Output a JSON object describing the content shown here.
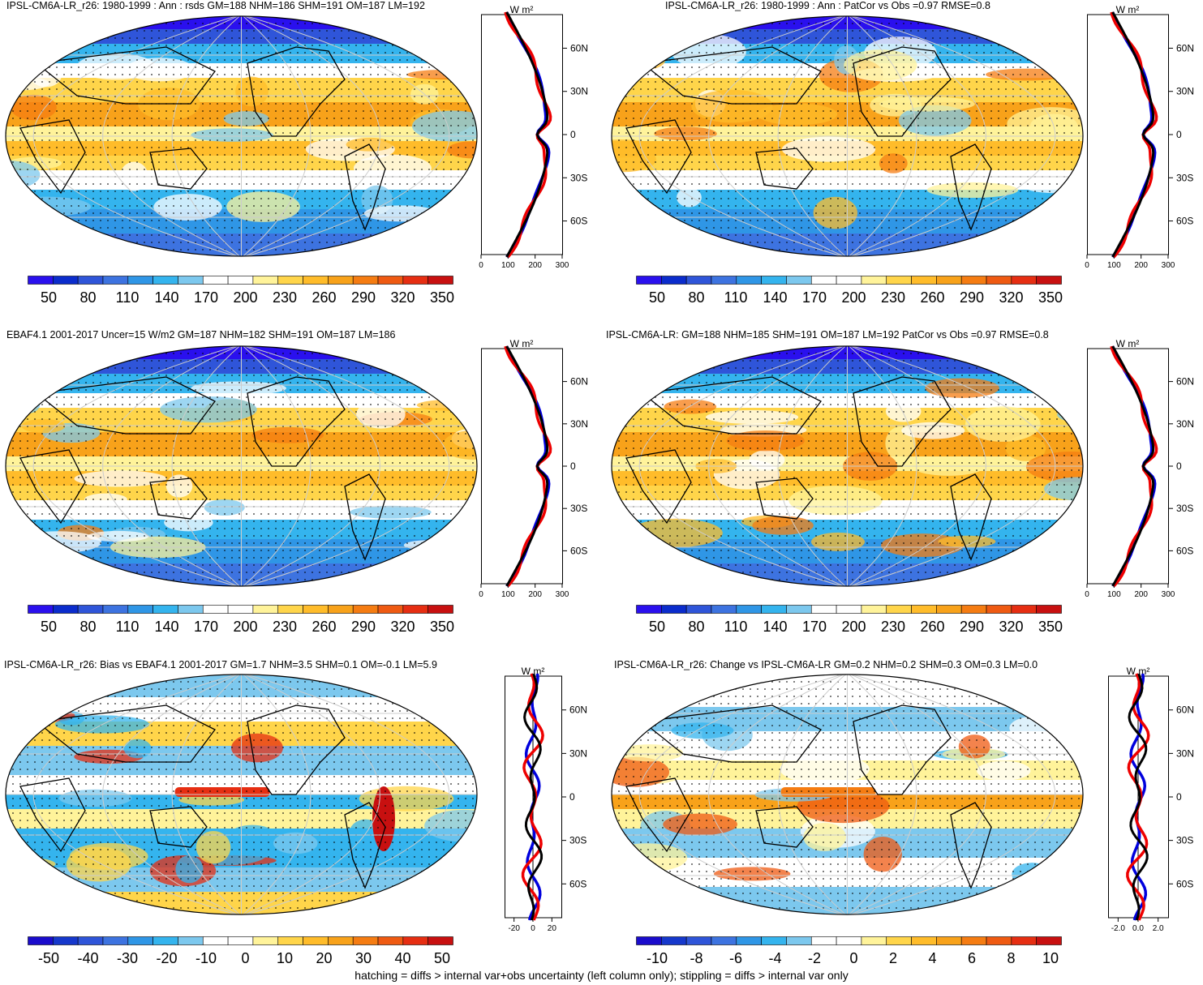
{
  "footer": "hatching = diffs > internal var+obs uncertainty (left column only); stippling = diffs > internal var only",
  "chart_data": [
    {
      "type": "heatmap",
      "title": "IPSL-CM6A-LR_r26: 1980-1999 : Ann : rsds GM=188 NHM=186 SHM=191 OM=187 LM=192",
      "colorbar": {
        "ticks": [
          "50",
          "80",
          "110",
          "140",
          "170",
          "200",
          "230",
          "260",
          "290",
          "320",
          "350"
        ],
        "palette": "abs"
      },
      "zonal": {
        "unit": "W m²",
        "xlim": [
          0,
          300
        ],
        "xticks": [
          "0",
          "100",
          "200",
          "300"
        ],
        "ylabels": [
          "60N",
          "30N",
          "0",
          "30S",
          "60S"
        ],
        "kind": "abs"
      }
    },
    {
      "type": "heatmap",
      "title": "IPSL-CM6A-LR_r26: 1980-1999 : Ann : PatCor vs Obs =0.97 RMSE=0.8",
      "colorbar": {
        "ticks": [
          "50",
          "80",
          "110",
          "140",
          "170",
          "200",
          "230",
          "260",
          "290",
          "320",
          "350"
        ],
        "palette": "abs"
      },
      "zonal": {
        "unit": "W m²",
        "xlim": [
          0,
          300
        ],
        "xticks": [
          "0",
          "100",
          "200",
          "300"
        ],
        "ylabels": [
          "60N",
          "30N",
          "0",
          "30S",
          "60S"
        ],
        "kind": "abs"
      }
    },
    {
      "type": "heatmap",
      "title": "EBAF4.1 2001-2017 Uncer=15 W/m2 GM=187 NHM=182 SHM=191 OM=187 LM=186",
      "colorbar": {
        "ticks": [
          "50",
          "80",
          "110",
          "140",
          "170",
          "200",
          "230",
          "260",
          "290",
          "320",
          "350"
        ],
        "palette": "abs"
      },
      "zonal": {
        "unit": "W m²",
        "xlim": [
          0,
          300
        ],
        "xticks": [
          "0",
          "100",
          "200",
          "300"
        ],
        "ylabels": [
          "60N",
          "30N",
          "0",
          "30S",
          "60S"
        ],
        "kind": "abs"
      }
    },
    {
      "type": "heatmap",
      "title": "IPSL-CM6A-LR: GM=188 NHM=185 SHM=191 OM=187 LM=192 PatCor vs Obs =0.97 RMSE=0.8",
      "colorbar": {
        "ticks": [
          "50",
          "80",
          "110",
          "140",
          "170",
          "200",
          "230",
          "260",
          "290",
          "320",
          "350"
        ],
        "palette": "abs"
      },
      "zonal": {
        "unit": "W m²",
        "xlim": [
          0,
          300
        ],
        "xticks": [
          "0",
          "100",
          "200",
          "300"
        ],
        "ylabels": [
          "60N",
          "30N",
          "0",
          "30S",
          "60S"
        ],
        "kind": "abs"
      }
    },
    {
      "type": "heatmap",
      "title": "IPSL-CM6A-LR_r26: Bias vs EBAF4.1 2001-2017 GM=1.7 NHM=3.5 SHM=0.1 OM=-0.1 LM=5.9",
      "colorbar": {
        "ticks": [
          "-50",
          "-40",
          "-30",
          "-20",
          "-10",
          "0",
          "10",
          "20",
          "30",
          "40",
          "50"
        ],
        "palette": "diff"
      },
      "zonal": {
        "unit": "W m²",
        "xlim": [
          -30,
          30
        ],
        "xticks": [
          "-20",
          "0",
          "20"
        ],
        "ylabels": [
          "60N",
          "30N",
          "0",
          "30S",
          "60S"
        ],
        "kind": "bias"
      }
    },
    {
      "type": "heatmap",
      "title": "IPSL-CM6A-LR_r26: Change vs IPSL-CM6A-LR GM=0.2 NHM=0.2 SHM=0.3 OM=0.3 LM=0.0",
      "colorbar": {
        "ticks": [
          "-10",
          "-8",
          "-6",
          "-4",
          "-2",
          "0",
          "2",
          "4",
          "6",
          "8",
          "10"
        ],
        "palette": "diff"
      },
      "zonal": {
        "unit": "W m²",
        "xlim": [
          -3,
          3
        ],
        "xticks": [
          "-2.0",
          "0.0",
          "2.0"
        ],
        "ylabels": [
          "60N",
          "30N",
          "0",
          "30S",
          "60S"
        ],
        "kind": "change"
      }
    }
  ]
}
